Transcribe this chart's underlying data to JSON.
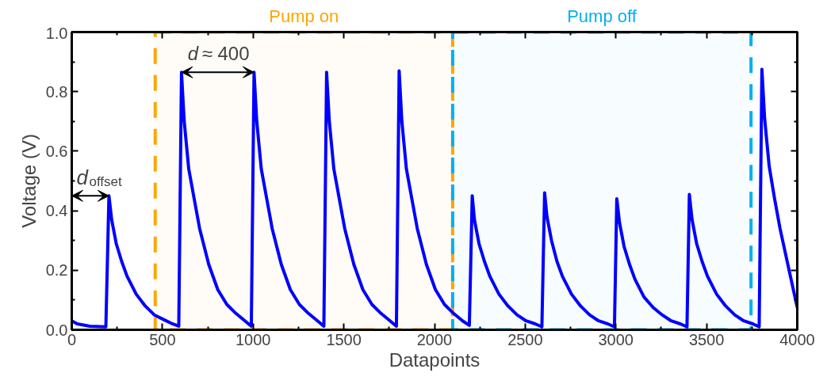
{
  "chart_data": {
    "type": "line",
    "xlabel": "Datapoints",
    "ylabel": "Voltage (V)",
    "xlim": [
      0,
      4000
    ],
    "ylim": [
      0,
      1.0
    ],
    "xticks": [
      0,
      500,
      1000,
      1500,
      2000,
      2500,
      3000,
      3500,
      4000
    ],
    "yticks": [
      {
        "value": 0,
        "label": "0.0"
      },
      {
        "value": 0.2,
        "label": "0.2"
      },
      {
        "value": 0.4,
        "label": "0.4"
      },
      {
        "value": 0.6,
        "label": "0.6"
      },
      {
        "value": 0.8,
        "label": "0.8"
      },
      {
        "value": 1.0,
        "label": "1.0"
      }
    ],
    "grid": false,
    "marker": "none",
    "line_style": "solid",
    "bands": [
      {
        "axis": "x",
        "from": 460,
        "to": 2100,
        "label": "Pump on",
        "color": "#ffa500"
      },
      {
        "axis": "x",
        "from": 2100,
        "to": 3745,
        "label": "Pump off",
        "color": "#00b0f0"
      }
    ],
    "annotations": [
      {
        "text": "d ≈ 400",
        "x": 1005,
        "y": 0.865
      },
      {
        "text": "d$_{offset}$",
        "x": 205,
        "y": 0.45
      }
    ],
    "series": [
      {
        "color": "#0000ff",
        "x": [
          0,
          30,
          100,
          188,
          205,
          220,
          245,
          275,
          305,
          355,
          405,
          455,
          505,
          555,
          590,
          605,
          620,
          645,
          675,
          705,
          755,
          805,
          855,
          905,
          955,
          990,
          1005,
          1020,
          1045,
          1075,
          1105,
          1155,
          1205,
          1255,
          1305,
          1355,
          1390,
          1405,
          1420,
          1445,
          1475,
          1505,
          1555,
          1605,
          1655,
          1705,
          1755,
          1790,
          1805,
          1820,
          1845,
          1875,
          1905,
          1955,
          2005,
          2055,
          2105,
          2155,
          2192,
          2208,
          2220,
          2245,
          2275,
          2305,
          2355,
          2405,
          2455,
          2505,
          2555,
          2592,
          2607,
          2620,
          2645,
          2675,
          2705,
          2755,
          2805,
          2855,
          2905,
          2955,
          2992,
          3005,
          3020,
          3045,
          3075,
          3105,
          3155,
          3205,
          3255,
          3305,
          3355,
          3392,
          3405,
          3420,
          3445,
          3475,
          3505,
          3555,
          3605,
          3655,
          3705,
          3755,
          3790,
          3805,
          3820,
          3845,
          3875,
          3905,
          3955,
          4000
        ],
        "values": [
          0.03,
          0.02,
          0.012,
          0.01,
          0.45,
          0.37,
          0.29,
          0.23,
          0.18,
          0.12,
          0.08,
          0.05,
          0.035,
          0.02,
          0.012,
          0.865,
          0.7,
          0.54,
          0.44,
          0.34,
          0.22,
          0.135,
          0.085,
          0.055,
          0.03,
          0.012,
          0.865,
          0.7,
          0.54,
          0.44,
          0.34,
          0.22,
          0.135,
          0.085,
          0.055,
          0.03,
          0.012,
          0.865,
          0.7,
          0.54,
          0.44,
          0.34,
          0.22,
          0.135,
          0.085,
          0.055,
          0.03,
          0.012,
          0.87,
          0.7,
          0.54,
          0.44,
          0.34,
          0.22,
          0.135,
          0.085,
          0.055,
          0.03,
          0.015,
          0.45,
          0.37,
          0.29,
          0.23,
          0.18,
          0.12,
          0.08,
          0.05,
          0.03,
          0.02,
          0.01,
          0.46,
          0.38,
          0.3,
          0.23,
          0.18,
          0.12,
          0.08,
          0.05,
          0.03,
          0.02,
          0.01,
          0.44,
          0.36,
          0.28,
          0.22,
          0.17,
          0.11,
          0.075,
          0.05,
          0.03,
          0.02,
          0.01,
          0.455,
          0.37,
          0.29,
          0.23,
          0.18,
          0.12,
          0.08,
          0.05,
          0.03,
          0.02,
          0.01,
          0.875,
          0.71,
          0.55,
          0.44,
          0.34,
          0.2,
          0.075
        ]
      }
    ]
  }
}
